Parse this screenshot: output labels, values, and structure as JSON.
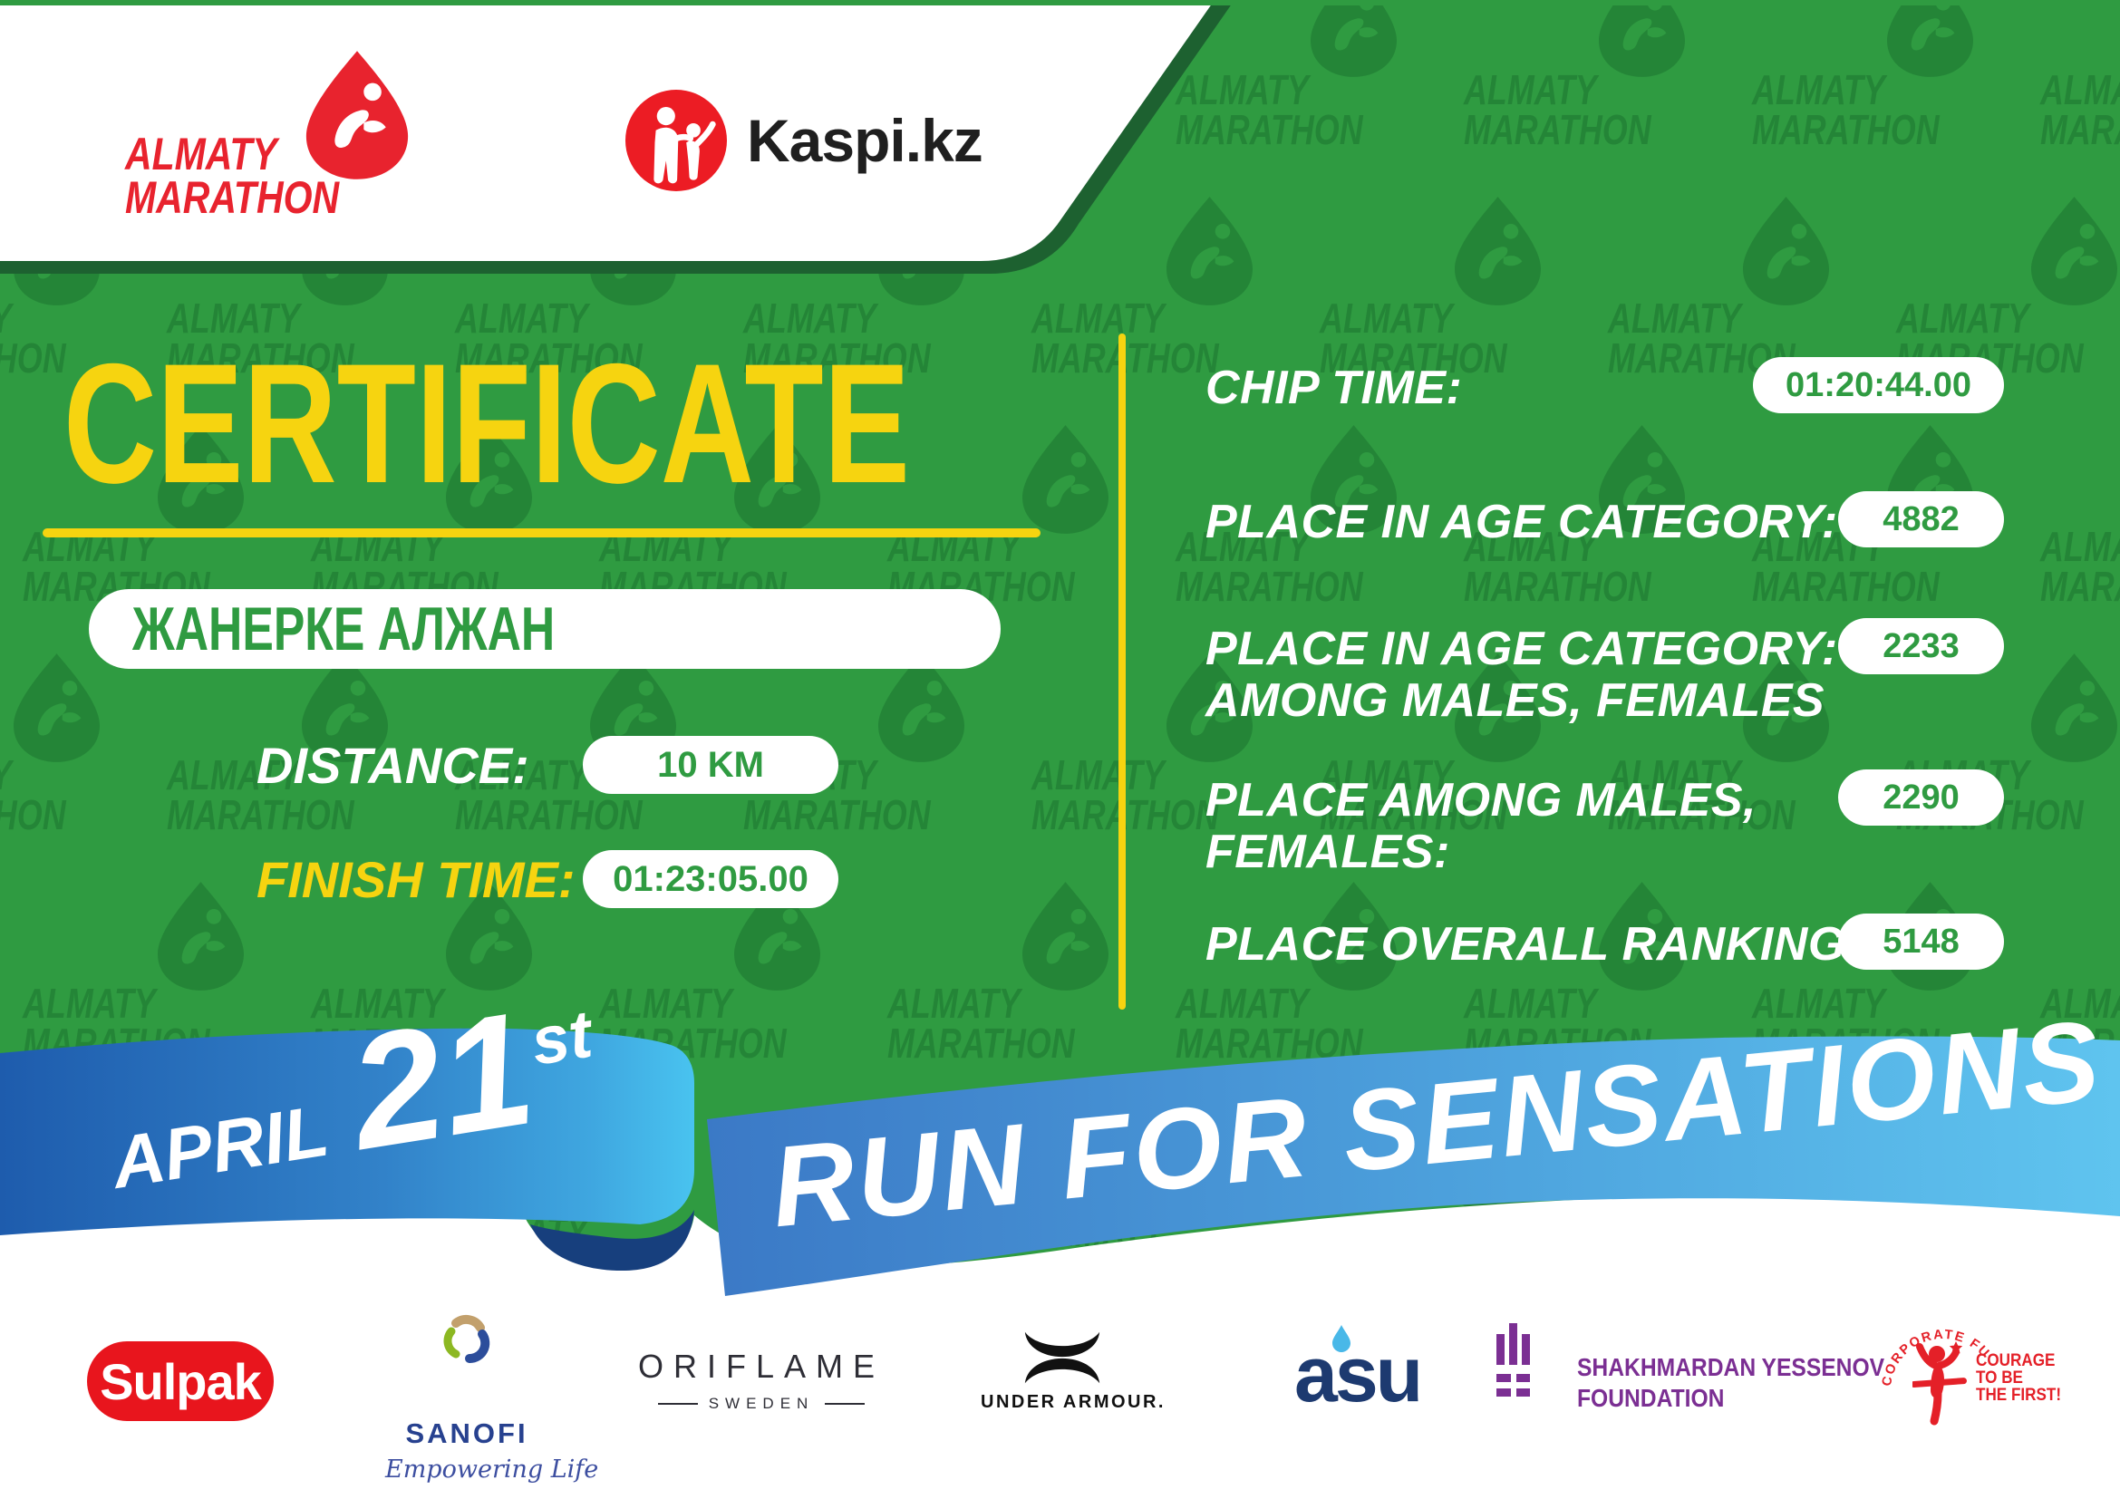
{
  "header": {
    "almaty_logo": {
      "line1": "ALMATY",
      "line2": "MARATHON"
    },
    "kaspi_label": "Kaspi.kz"
  },
  "certificate": {
    "title": "CERTIFICATE",
    "name": "ЖАНЕРКЕ АЛЖАН",
    "distance_label": "DISTANCE:",
    "distance_value": "10 KM",
    "finish_label": "FINISH TIME:",
    "finish_value": "01:23:05.00"
  },
  "results": {
    "rows": [
      {
        "label": "CHIP TIME:",
        "label2": "",
        "value": "01:20:44.00"
      },
      {
        "label": "PLACE IN AGE CATEGORY:",
        "label2": "",
        "value": "4882"
      },
      {
        "label": "PLACE IN AGE CATEGORY:",
        "label2": "AMONG MALES, FEMALES",
        "value": "2233"
      },
      {
        "label": "PLACE AMONG MALES,",
        "label2": "FEMALES:",
        "value": "2290"
      },
      {
        "label": "PLACE OVERALL RANKING:",
        "label2": "",
        "value": "5148"
      }
    ]
  },
  "ribbon": {
    "month": "APRIL",
    "day": "21",
    "day_suffix": "st",
    "slogan": "RUN FOR SENSATIONS"
  },
  "watermark": {
    "line1": "ALMATY",
    "line2": "MARATHON"
  },
  "sponsors": {
    "sulpak": "Sulpak",
    "sanofi": {
      "name": "SANOFI",
      "tagline": "Empowering Life"
    },
    "oriflame": {
      "name": "ORIFLAME",
      "sub": "SWEDEN"
    },
    "under_armour": "UNDER ARMOUR.",
    "asu": "asu",
    "yessenov": {
      "line1": "SHAKHMARDAN YESSENOV",
      "line2": "FOUNDATION"
    },
    "courage": {
      "arc": "CORPORATE FUND",
      "line1": "COURAGE",
      "line2": "TO BE",
      "line3": "THE FIRST!"
    }
  },
  "colors": {
    "green": "#2F9B41",
    "dark_green": "#1D6130",
    "yellow": "#F6D410",
    "ribbon_blue_dark": "#1E5CAD",
    "ribbon_blue_light": "#5FC4EF",
    "red": "#E8232E",
    "purple": "#7B2F93",
    "navy": "#1D3A70"
  }
}
